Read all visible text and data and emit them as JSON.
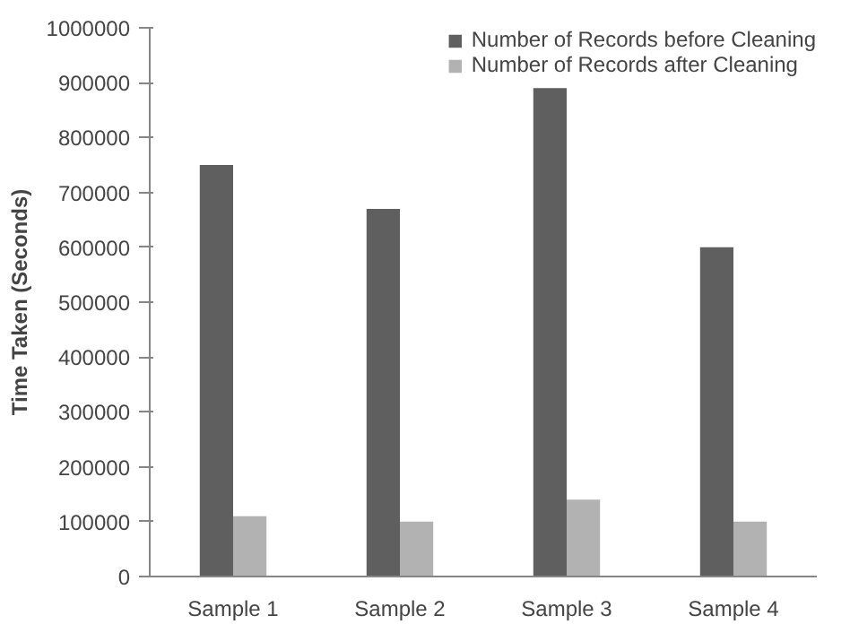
{
  "chart_data": {
    "type": "bar",
    "ylabel": "Time Taken (Seconds)",
    "categories": [
      "Sample 1",
      "Sample 2",
      "Sample 3",
      "Sample 4"
    ],
    "series": [
      {
        "name": "Number of Records before Cleaning",
        "color": "#5f5f5f",
        "values": [
          750000,
          670000,
          890000,
          600000
        ]
      },
      {
        "name": "Number of Records after Cleaning",
        "color": "#b2b2b2",
        "values": [
          110000,
          100000,
          140000,
          100000
        ]
      }
    ],
    "ylim": [
      0,
      1000000
    ],
    "yticks": [
      0,
      100000,
      200000,
      300000,
      400000,
      500000,
      600000,
      700000,
      800000,
      900000,
      1000000
    ],
    "grid": false,
    "legend": "top"
  }
}
